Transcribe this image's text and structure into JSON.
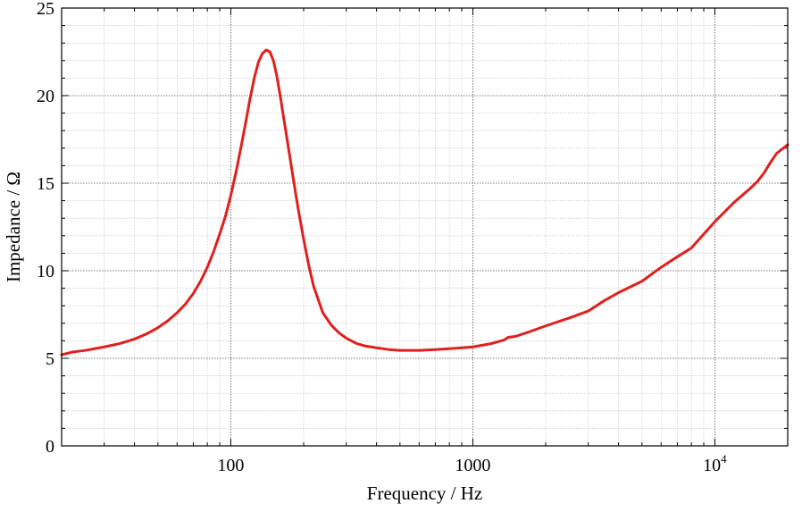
{
  "chart_data": {
    "type": "line",
    "xlabel": "Frequency / Hz",
    "ylabel": "Impedance / Ω",
    "xscale": "log",
    "xlim": [
      20,
      20000
    ],
    "ylim": [
      0,
      25
    ],
    "grid": true,
    "x_tick_labels": [
      {
        "value": 100,
        "base": "100",
        "exp": ""
      },
      {
        "value": 1000,
        "base": "1000",
        "exp": ""
      },
      {
        "value": 10000,
        "base": "10",
        "exp": "4"
      }
    ],
    "y_tick_labels": [
      "0",
      "5",
      "10",
      "15",
      "20",
      "25"
    ],
    "y_ticks": [
      0,
      5,
      10,
      15,
      20,
      25
    ],
    "series": [
      {
        "color": "#e0201e",
        "x": [
          20,
          22,
          25,
          30,
          35,
          40,
          45,
          50,
          55,
          60,
          65,
          70,
          75,
          80,
          85,
          90,
          95,
          100,
          105,
          110,
          115,
          120,
          125,
          130,
          135,
          140,
          145,
          150,
          155,
          160,
          165,
          170,
          175,
          180,
          190,
          200,
          210,
          220,
          240,
          260,
          280,
          300,
          330,
          360,
          400,
          450,
          500,
          600,
          700,
          800,
          900,
          1000,
          1200,
          1350,
          1400,
          1500,
          1700,
          2000,
          2500,
          3000,
          3500,
          4000,
          5000,
          6000,
          7000,
          8000,
          10000,
          12000,
          14000,
          15000,
          16000,
          17000,
          18000,
          20000
        ],
        "y": [
          5.2,
          5.35,
          5.45,
          5.65,
          5.85,
          6.1,
          6.4,
          6.75,
          7.15,
          7.6,
          8.1,
          8.7,
          9.4,
          10.2,
          11.1,
          12.1,
          13.1,
          14.3,
          15.6,
          17.0,
          18.4,
          19.8,
          21.0,
          21.9,
          22.4,
          22.6,
          22.5,
          22.0,
          21.1,
          20.0,
          18.8,
          17.7,
          16.6,
          15.5,
          13.5,
          11.8,
          10.3,
          9.1,
          7.6,
          6.9,
          6.45,
          6.15,
          5.85,
          5.7,
          5.6,
          5.5,
          5.45,
          5.45,
          5.5,
          5.55,
          5.6,
          5.65,
          5.85,
          6.05,
          6.2,
          6.25,
          6.5,
          6.85,
          7.3,
          7.7,
          8.3,
          8.75,
          9.4,
          10.2,
          10.8,
          11.3,
          12.8,
          13.9,
          14.7,
          15.1,
          15.6,
          16.2,
          16.7,
          17.2
        ]
      }
    ]
  }
}
